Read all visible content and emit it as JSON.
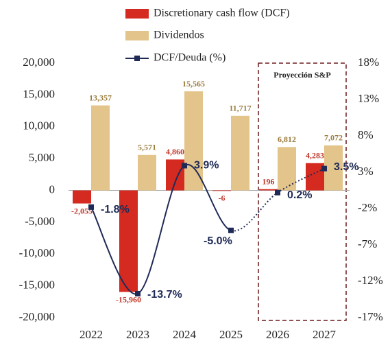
{
  "chart_data": {
    "type": "bar",
    "categories": [
      "2022",
      "2023",
      "2024",
      "2025",
      "2026",
      "2027"
    ],
    "series": [
      {
        "name": "Discretionary cash flow (DCF)",
        "color": "#d42a20",
        "values": [
          -2055,
          -15960,
          4860,
          -6,
          196,
          4283
        ],
        "value_labels": [
          "-2,055",
          "-15,960",
          "4,860",
          "-6",
          "196",
          "4,283"
        ]
      },
      {
        "name": "Dividendos",
        "color": "#e3c48a",
        "values": [
          13357,
          5571,
          15565,
          11717,
          6812,
          7072
        ],
        "value_labels": [
          "13,357",
          "5,571",
          "15,565",
          "11,717",
          "6,812",
          "7,072"
        ]
      },
      {
        "name": "DCF/Deuda (%)",
        "type": "line",
        "axis": "y2",
        "color": "#1f2a56",
        "values": [
          -1.8,
          -13.7,
          3.9,
          -5.0,
          0.2,
          3.5
        ],
        "value_labels": [
          "-1.8%",
          "-13.7%",
          "3.9%",
          "-5.0%",
          "0.2%",
          "3.5%"
        ]
      }
    ],
    "ylim": [
      -20000,
      20000
    ],
    "yticks": [
      {
        "value": -20000,
        "label": "-20,000"
      },
      {
        "value": -15000,
        "label": "-15,000"
      },
      {
        "value": -10000,
        "label": "-10,000"
      },
      {
        "value": -5000,
        "label": "-5,000"
      },
      0,
      {
        "value": 5000,
        "label": "5,000"
      },
      {
        "value": 10000,
        "label": "10,000"
      },
      {
        "value": 15000,
        "label": "15,000"
      },
      {
        "value": 20000,
        "label": "20,000"
      }
    ],
    "y2lim": [
      -17,
      18
    ],
    "y2ticks": [
      {
        "value": -17,
        "label": "-17%"
      },
      {
        "value": -12,
        "label": "-12%"
      },
      {
        "value": -7,
        "label": "-7%"
      },
      {
        "value": -2,
        "label": "-2%"
      },
      {
        "value": 3,
        "label": "3%"
      },
      {
        "value": 8,
        "label": "8%"
      },
      {
        "value": 13,
        "label": "13%"
      },
      {
        "value": 18,
        "label": "18%"
      }
    ],
    "annotation": "Proyección S&P"
  }
}
